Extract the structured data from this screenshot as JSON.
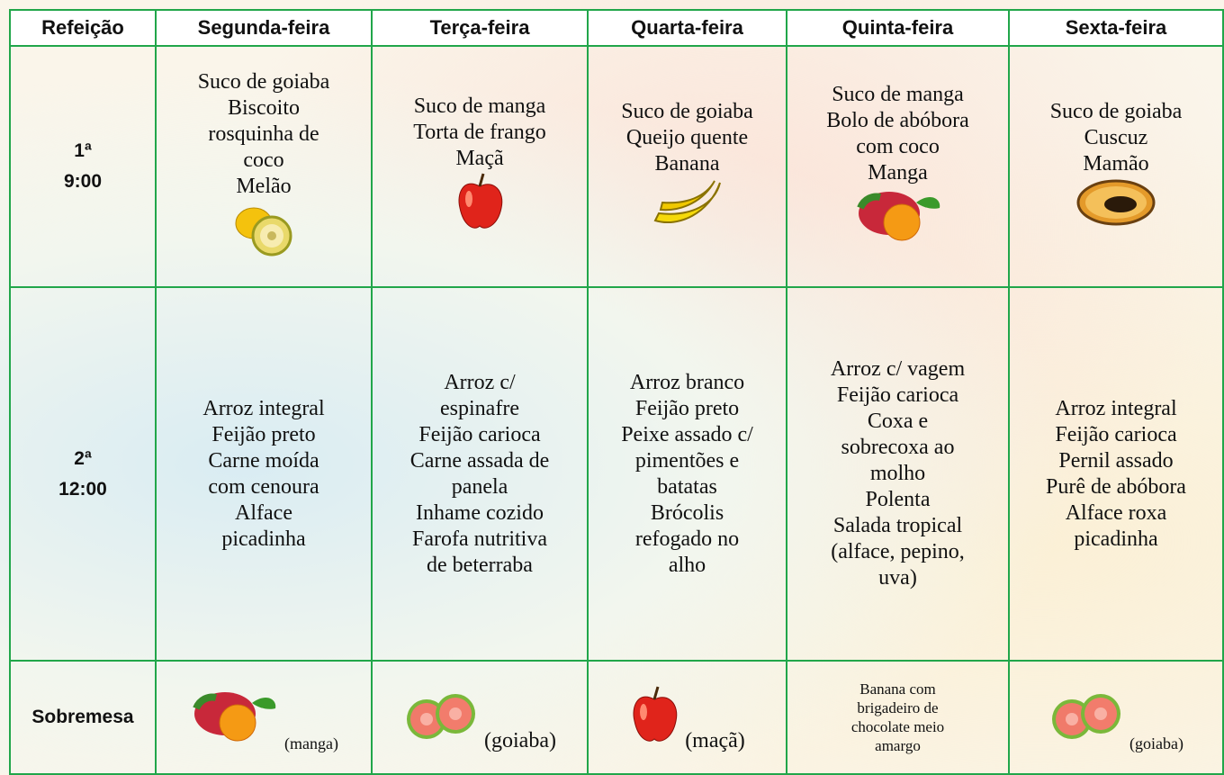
{
  "table": {
    "header": [
      "Refeição",
      "Segunda-feira",
      "Terça-feira",
      "Quarta-feira",
      "Quinta-feira",
      "Sexta-feira"
    ],
    "rows": [
      {
        "label": [
          "1ª",
          "9:00"
        ],
        "cells": [
          [
            "Suco de goiaba",
            "Biscoito",
            "rosquinha de",
            "coco",
            "Melão"
          ],
          [
            "Suco de manga",
            "Torta de frango",
            "Maçã"
          ],
          [
            "Suco de goiaba",
            "Queijo quente",
            "Banana"
          ],
          [
            "Suco de manga",
            "Bolo de abóbora",
            "com coco",
            "Manga"
          ],
          [
            "Suco de goiaba",
            "Cuscuz",
            "Mamão"
          ]
        ]
      },
      {
        "label": [
          "2ª",
          "12:00"
        ],
        "cells": [
          [
            "Arroz integral",
            "Feijão preto",
            "Carne moída",
            "com cenoura",
            "Alface",
            "picadinha"
          ],
          [
            "Arroz c/",
            "espinafre",
            "Feijão carioca",
            "Carne assada de",
            "panela",
            "Inhame cozido",
            "Farofa nutritiva",
            "de beterraba"
          ],
          [
            "Arroz branco",
            "Feijão preto",
            "Peixe assado c/",
            "pimentões e",
            "batatas",
            "Brócolis",
            "refogado no",
            "alho"
          ],
          [
            "Arroz c/ vagem",
            "Feijão carioca",
            "Coxa e",
            "sobrecoxa ao",
            "molho",
            "Polenta",
            "Salada tropical",
            "(alface, pepino,",
            "uva)"
          ],
          [
            "Arroz integral",
            "Feijão carioca",
            "Pernil assado",
            "Purê de abóbora",
            "Alface roxa",
            "picadinha"
          ]
        ]
      },
      {
        "label": [
          "Sobremesa"
        ],
        "cells": [
          [
            "(manga)"
          ],
          [
            "(goiaba)"
          ],
          [
            "(maçã)"
          ],
          [
            "Banana com",
            "brigadeiro de",
            "chocolate meio",
            "amargo"
          ],
          [
            "(goiaba)"
          ]
        ]
      }
    ]
  }
}
